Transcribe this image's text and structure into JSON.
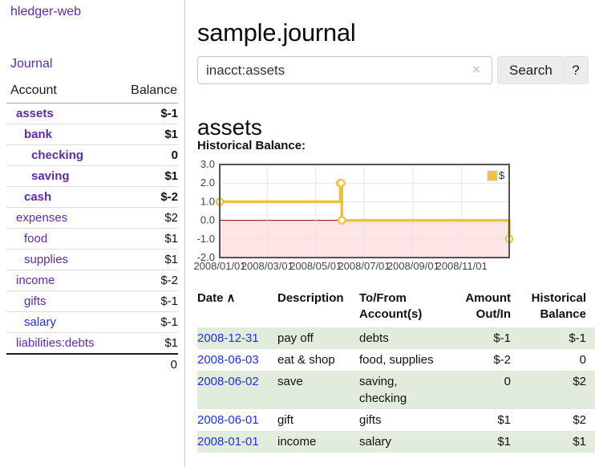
{
  "sidebar": {
    "brand": "hledger-web",
    "nav": {
      "journal": "Journal"
    },
    "accounts_table": {
      "headers": {
        "account": "Account",
        "balance": "Balance"
      },
      "accounts": [
        {
          "name": "assets",
          "depth": 1,
          "bold": true,
          "balance": "$-1",
          "tone": "neg-strong",
          "link_color": "purple"
        },
        {
          "name": "bank",
          "depth": 2,
          "bold": true,
          "balance": "$1",
          "tone": "",
          "link_color": "purple"
        },
        {
          "name": "checking",
          "depth": 3,
          "bold": true,
          "balance": "0",
          "tone": "",
          "link_color": "purple"
        },
        {
          "name": "saving",
          "depth": 3,
          "bold": true,
          "balance": "$1",
          "tone": "",
          "link_color": "purple"
        },
        {
          "name": "cash",
          "depth": 2,
          "bold": true,
          "balance": "$-2",
          "tone": "neg-strong",
          "link_color": "purple"
        },
        {
          "name": "expenses",
          "depth": 1,
          "bold": false,
          "balance": "$2",
          "tone": "",
          "link_color": "purple"
        },
        {
          "name": "food",
          "depth": 2,
          "bold": false,
          "balance": "$1",
          "tone": "",
          "link_color": "purple"
        },
        {
          "name": "supplies",
          "depth": 2,
          "bold": false,
          "balance": "$1",
          "tone": "",
          "link_color": "purple"
        },
        {
          "name": "income",
          "depth": 1,
          "bold": false,
          "balance": "$-2",
          "tone": "neg-muted",
          "link_color": "purple"
        },
        {
          "name": "gifts",
          "depth": 2,
          "bold": false,
          "balance": "$-1",
          "tone": "neg-muted",
          "link_color": "purple"
        },
        {
          "name": "salary",
          "depth": 2,
          "bold": false,
          "balance": "$-1",
          "tone": "neg-muted",
          "link_color": "blue"
        },
        {
          "name": "liabilities:debts",
          "depth": 1,
          "bold": false,
          "balance": "$1",
          "tone": "",
          "link_color": "purple"
        }
      ],
      "total": "0"
    }
  },
  "header": {
    "title": "sample.journal"
  },
  "search": {
    "query": "inacct:assets",
    "clear_icon": "×",
    "search_button": "Search",
    "help_button": "?"
  },
  "account_page": {
    "heading": "assets",
    "chart_label": "Historical Balance:"
  },
  "chart_data": {
    "type": "line",
    "title": "Historical Balance",
    "step": true,
    "xlim_days": [
      0,
      365
    ],
    "ylim": [
      -2,
      3
    ],
    "yticks": [
      {
        "label": "3.0",
        "value": 3
      },
      {
        "label": "2.0",
        "value": 2
      },
      {
        "label": "1.0",
        "value": 1
      },
      {
        "label": "0.0",
        "value": 0
      },
      {
        "label": "-1.0",
        "value": -1
      },
      {
        "label": "-2.0",
        "value": -2
      }
    ],
    "xticks": [
      {
        "label": "2008/01/01",
        "day": 0
      },
      {
        "label": "2008/03/01",
        "day": 60
      },
      {
        "label": "2008/05/01",
        "day": 121
      },
      {
        "label": "2008/07/01",
        "day": 182
      },
      {
        "label": "2008/09/01",
        "day": 244
      },
      {
        "label": "2008/11/01",
        "day": 305
      }
    ],
    "series": [
      {
        "name": "$",
        "color": "#edc240",
        "points": [
          {
            "date": "2008-01-01",
            "day": 0,
            "value": 1
          },
          {
            "date": "2008-06-01",
            "day": 152,
            "value": 2
          },
          {
            "date": "2008-06-02",
            "day": 153,
            "value": 2
          },
          {
            "date": "2008-06-03",
            "day": 154,
            "value": 0
          },
          {
            "date": "2008-12-31",
            "day": 365,
            "value": -1
          }
        ]
      }
    ],
    "legend": {
      "label": "$",
      "swatch_color": "#edc240",
      "swatch_border": "#cccccc",
      "position": "top-right"
    },
    "grid": true,
    "grid_color": "#e7e7e7",
    "border_color": "#545454",
    "zero_line_color": "#8b0000",
    "negative_fill": "rgba(255,0,0,0.10)",
    "axis_text_color": "#444444"
  },
  "register": {
    "columns": [
      {
        "label": "Date",
        "sort_indicator": "∧"
      },
      {
        "label": "Description"
      },
      {
        "label": "To/From Account(s)"
      },
      {
        "label": "Amount Out/In"
      },
      {
        "label": "Historical Balance"
      }
    ],
    "rows": [
      {
        "date": "2008-12-31",
        "description": "pay off",
        "accounts": "debts",
        "amount": "$-1",
        "amount_negative": true,
        "balance": "$-1",
        "balance_negative": true
      },
      {
        "date": "2008-06-03",
        "description": "eat & shop",
        "accounts": "food, supplies",
        "amount": "$-2",
        "amount_negative": true,
        "balance": "0",
        "balance_negative": false
      },
      {
        "date": "2008-06-02",
        "description": "save",
        "accounts": "saving, checking",
        "amount": "0",
        "amount_negative": false,
        "balance": "$2",
        "balance_negative": false
      },
      {
        "date": "2008-06-01",
        "description": "gift",
        "accounts": "gifts",
        "amount": "$1",
        "amount_negative": false,
        "balance": "$2",
        "balance_negative": false
      },
      {
        "date": "2008-01-01",
        "description": "income",
        "accounts": "salary",
        "amount": "$1",
        "amount_negative": false,
        "balance": "$1",
        "balance_negative": false
      }
    ]
  },
  "colors": {
    "link_purple": "#5f2ba0",
    "link_blue": "#2230dd",
    "negative_strong": "#9b1c1c",
    "negative_muted": "#c0807d",
    "row_stripe_green": "#e2ecdc",
    "chart_line_gold": "#edc240"
  }
}
